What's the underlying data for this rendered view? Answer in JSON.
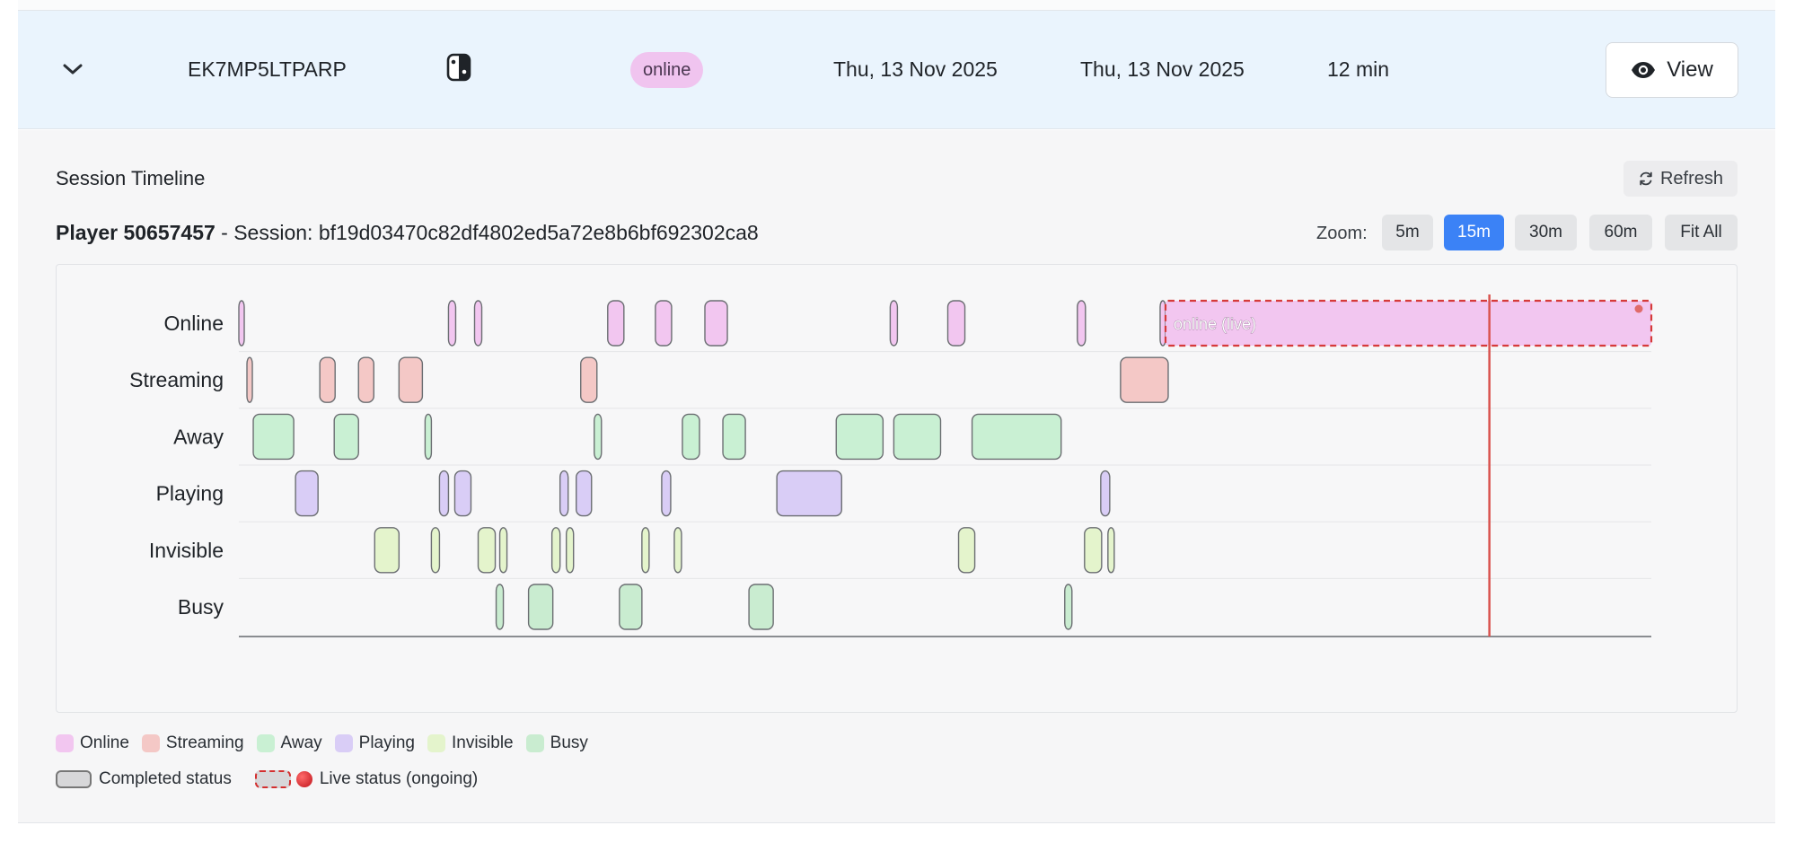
{
  "row": {
    "code": "EK7MP5LTPARP",
    "device_icon": "console-icon",
    "status_badge": "online",
    "start_date": "Thu, 13 Nov 2025",
    "end_date": "Thu, 13 Nov 2025",
    "duration": "12 min",
    "view_label": "View"
  },
  "panel": {
    "title": "Session Timeline",
    "refresh_label": "Refresh",
    "player_label": "Player 50657457",
    "session_label": " - Session: bf19d03470c82df4802ed5a72e8b6bf692302ca8",
    "zoom_label": "Zoom:",
    "zoom_options": [
      "5m",
      "15m",
      "30m",
      "60m",
      "Fit All"
    ],
    "zoom_active": "15m"
  },
  "chart_data": {
    "type": "timeline",
    "x_unit": "minutes since start of visible window (estimated)",
    "x_range": [
      0,
      15.7
    ],
    "rows": [
      "Online",
      "Streaming",
      "Away",
      "Playing",
      "Invisible",
      "Busy"
    ],
    "colors": {
      "Online": "#f2c6f0",
      "Streaming": "#f4c8c6",
      "Away": "#c9f0d3",
      "Playing": "#d9cdf6",
      "Invisible": "#e4f4cc",
      "Busy": "#c9ecd0"
    },
    "live_segment": {
      "row": "Online",
      "start": 10.3,
      "end": 15.7,
      "label": "online (live)"
    },
    "now_marker": 13.9,
    "segments": [
      {
        "row": "Online",
        "start": 0.0,
        "end": 0.06
      },
      {
        "row": "Online",
        "start": 2.33,
        "end": 2.41
      },
      {
        "row": "Online",
        "start": 2.62,
        "end": 2.7
      },
      {
        "row": "Online",
        "start": 4.1,
        "end": 4.28
      },
      {
        "row": "Online",
        "start": 4.63,
        "end": 4.81
      },
      {
        "row": "Online",
        "start": 5.18,
        "end": 5.43
      },
      {
        "row": "Online",
        "start": 7.24,
        "end": 7.32
      },
      {
        "row": "Online",
        "start": 7.88,
        "end": 8.07
      },
      {
        "row": "Online",
        "start": 9.32,
        "end": 9.41
      },
      {
        "row": "Online",
        "start": 10.24,
        "end": 10.3
      },
      {
        "row": "Streaming",
        "start": 0.09,
        "end": 0.15
      },
      {
        "row": "Streaming",
        "start": 0.9,
        "end": 1.07
      },
      {
        "row": "Streaming",
        "start": 1.33,
        "end": 1.5
      },
      {
        "row": "Streaming",
        "start": 1.78,
        "end": 2.04
      },
      {
        "row": "Streaming",
        "start": 3.8,
        "end": 3.98
      },
      {
        "row": "Streaming",
        "start": 9.8,
        "end": 10.33
      },
      {
        "row": "Away",
        "start": 0.16,
        "end": 0.61
      },
      {
        "row": "Away",
        "start": 1.06,
        "end": 1.33
      },
      {
        "row": "Away",
        "start": 2.07,
        "end": 2.14
      },
      {
        "row": "Away",
        "start": 3.95,
        "end": 4.03
      },
      {
        "row": "Away",
        "start": 4.93,
        "end": 5.12
      },
      {
        "row": "Away",
        "start": 5.38,
        "end": 5.63
      },
      {
        "row": "Away",
        "start": 6.64,
        "end": 7.16
      },
      {
        "row": "Away",
        "start": 7.28,
        "end": 7.8
      },
      {
        "row": "Away",
        "start": 8.15,
        "end": 9.14
      },
      {
        "row": "Playing",
        "start": 0.63,
        "end": 0.88
      },
      {
        "row": "Playing",
        "start": 2.23,
        "end": 2.33
      },
      {
        "row": "Playing",
        "start": 2.4,
        "end": 2.58
      },
      {
        "row": "Playing",
        "start": 3.57,
        "end": 3.66
      },
      {
        "row": "Playing",
        "start": 3.75,
        "end": 3.92
      },
      {
        "row": "Playing",
        "start": 4.7,
        "end": 4.8
      },
      {
        "row": "Playing",
        "start": 5.98,
        "end": 6.7
      },
      {
        "row": "Playing",
        "start": 9.58,
        "end": 9.68
      },
      {
        "row": "Invisible",
        "start": 1.51,
        "end": 1.78
      },
      {
        "row": "Invisible",
        "start": 2.14,
        "end": 2.23
      },
      {
        "row": "Invisible",
        "start": 2.66,
        "end": 2.85
      },
      {
        "row": "Invisible",
        "start": 2.9,
        "end": 2.98
      },
      {
        "row": "Invisible",
        "start": 3.48,
        "end": 3.57
      },
      {
        "row": "Invisible",
        "start": 3.64,
        "end": 3.72
      },
      {
        "row": "Invisible",
        "start": 4.48,
        "end": 4.56
      },
      {
        "row": "Invisible",
        "start": 4.84,
        "end": 4.92
      },
      {
        "row": "Invisible",
        "start": 8.0,
        "end": 8.18
      },
      {
        "row": "Invisible",
        "start": 9.4,
        "end": 9.59
      },
      {
        "row": "Invisible",
        "start": 9.66,
        "end": 9.73
      },
      {
        "row": "Busy",
        "start": 2.86,
        "end": 2.94
      },
      {
        "row": "Busy",
        "start": 3.22,
        "end": 3.49
      },
      {
        "row": "Busy",
        "start": 4.23,
        "end": 4.48
      },
      {
        "row": "Busy",
        "start": 5.67,
        "end": 5.94
      },
      {
        "row": "Busy",
        "start": 9.18,
        "end": 9.26
      }
    ]
  },
  "legend": {
    "items": [
      {
        "label": "Online",
        "color": "#f2c6f0"
      },
      {
        "label": "Streaming",
        "color": "#f4c8c6"
      },
      {
        "label": "Away",
        "color": "#c9f0d3"
      },
      {
        "label": "Playing",
        "color": "#d9cdf6"
      },
      {
        "label": "Invisible",
        "color": "#e4f4cc"
      },
      {
        "label": "Busy",
        "color": "#c9ecd0"
      }
    ],
    "completed_label": "Completed status",
    "live_label": "Live status (ongoing)"
  }
}
